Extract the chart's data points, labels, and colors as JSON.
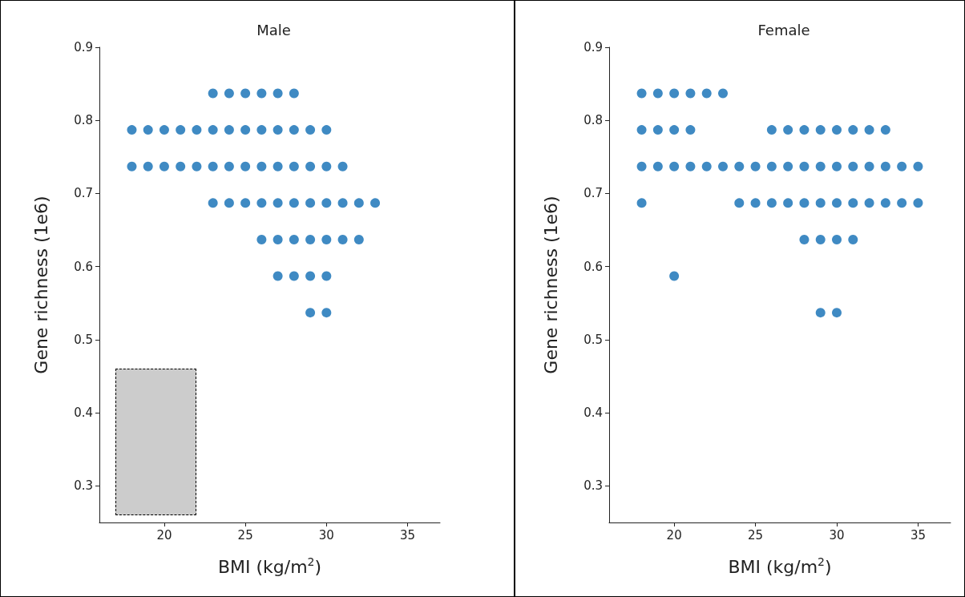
{
  "chart_data": [
    {
      "type": "scatter",
      "title": "Male",
      "xlabel": "BMI (kg/m$^{2}$)",
      "ylabel": "Gene richness (1e6)",
      "marker": "circle",
      "grid": false,
      "xlim": [
        16,
        37
      ],
      "xticks": [
        20,
        25,
        30,
        35
      ],
      "ylim": [
        0.25,
        0.9
      ],
      "yticks": [
        0.3,
        0.4,
        0.5,
        0.6,
        0.7,
        0.8,
        0.9
      ],
      "series": [
        {
          "color": "#3f8ac3",
          "x": [
            23,
            24,
            25,
            26,
            27,
            28,
            18,
            19,
            20,
            21,
            22,
            23,
            24,
            25,
            26,
            27,
            28,
            29,
            30,
            18,
            19,
            20,
            21,
            22,
            23,
            24,
            25,
            26,
            27,
            28,
            29,
            30,
            31,
            23,
            24,
            25,
            26,
            27,
            28,
            29,
            30,
            31,
            32,
            33,
            26,
            27,
            28,
            29,
            30,
            31,
            32,
            27,
            28,
            29,
            30,
            29,
            30
          ],
          "values": [
            0.837,
            0.837,
            0.837,
            0.837,
            0.837,
            0.837,
            0.787,
            0.787,
            0.787,
            0.787,
            0.787,
            0.787,
            0.787,
            0.787,
            0.787,
            0.787,
            0.787,
            0.787,
            0.787,
            0.737,
            0.737,
            0.737,
            0.737,
            0.737,
            0.737,
            0.737,
            0.737,
            0.737,
            0.737,
            0.737,
            0.737,
            0.737,
            0.737,
            0.687,
            0.687,
            0.687,
            0.687,
            0.687,
            0.687,
            0.687,
            0.687,
            0.687,
            0.687,
            0.687,
            0.637,
            0.637,
            0.637,
            0.637,
            0.637,
            0.637,
            0.637,
            0.587,
            0.587,
            0.587,
            0.587,
            0.537,
            0.537
          ]
        }
      ]
    },
    {
      "type": "scatter",
      "title": "Female",
      "xlabel": "BMI (kg/m$^{2}$)",
      "ylabel": "Gene richness (1e6)",
      "marker": "circle",
      "grid": false,
      "xlim": [
        16,
        37
      ],
      "xticks": [
        20,
        25,
        30,
        35
      ],
      "ylim": [
        0.25,
        0.9
      ],
      "yticks": [
        0.3,
        0.4,
        0.5,
        0.6,
        0.7,
        0.8,
        0.9
      ],
      "series": [
        {
          "color": "#3f8ac3",
          "x": [
            18,
            19,
            20,
            21,
            22,
            23,
            18,
            19,
            20,
            21,
            26,
            27,
            28,
            29,
            30,
            31,
            32,
            33,
            18,
            19,
            20,
            21,
            22,
            23,
            24,
            25,
            26,
            27,
            28,
            29,
            30,
            31,
            32,
            33,
            34,
            35,
            18,
            24,
            25,
            26,
            27,
            28,
            29,
            30,
            31,
            32,
            33,
            34,
            35,
            28,
            29,
            30,
            31,
            20,
            29,
            30
          ],
          "values": [
            0.837,
            0.837,
            0.837,
            0.837,
            0.837,
            0.837,
            0.787,
            0.787,
            0.787,
            0.787,
            0.787,
            0.787,
            0.787,
            0.787,
            0.787,
            0.787,
            0.787,
            0.787,
            0.737,
            0.737,
            0.737,
            0.737,
            0.737,
            0.737,
            0.737,
            0.737,
            0.737,
            0.737,
            0.737,
            0.737,
            0.737,
            0.737,
            0.737,
            0.737,
            0.737,
            0.737,
            0.687,
            0.687,
            0.687,
            0.687,
            0.687,
            0.687,
            0.687,
            0.687,
            0.687,
            0.687,
            0.687,
            0.687,
            0.687,
            0.637,
            0.637,
            0.637,
            0.637,
            0.587,
            0.537,
            0.537
          ]
        }
      ]
    }
  ]
}
